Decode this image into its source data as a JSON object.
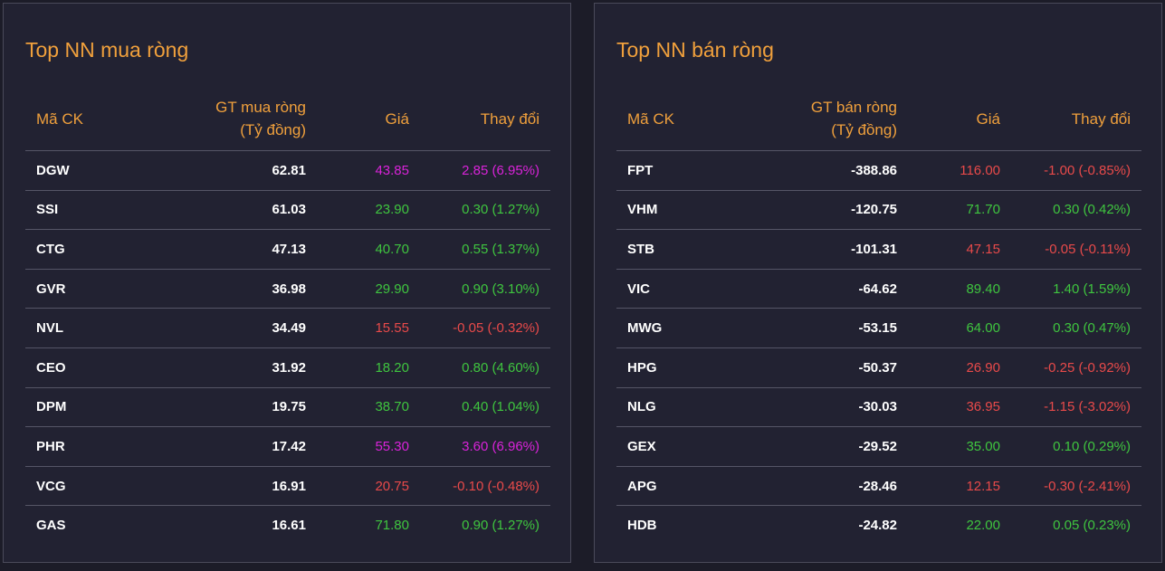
{
  "buy_panel": {
    "title": "Top NN mua ròng",
    "headers": {
      "code": "Mã CK",
      "value_line1": "GT mua ròng",
      "value_line2": "(Tỷ đồng)",
      "price": "Giá",
      "change": "Thay đổi"
    },
    "rows": [
      {
        "code": "DGW",
        "value": "62.81",
        "price": "43.85",
        "change": "2.85 (6.95%)",
        "status": "ceil"
      },
      {
        "code": "SSI",
        "value": "61.03",
        "price": "23.90",
        "change": "0.30 (1.27%)",
        "status": "up"
      },
      {
        "code": "CTG",
        "value": "47.13",
        "price": "40.70",
        "change": "0.55 (1.37%)",
        "status": "up"
      },
      {
        "code": "GVR",
        "value": "36.98",
        "price": "29.90",
        "change": "0.90 (3.10%)",
        "status": "up"
      },
      {
        "code": "NVL",
        "value": "34.49",
        "price": "15.55",
        "change": "-0.05 (-0.32%)",
        "status": "down"
      },
      {
        "code": "CEO",
        "value": "31.92",
        "price": "18.20",
        "change": "0.80 (4.60%)",
        "status": "up"
      },
      {
        "code": "DPM",
        "value": "19.75",
        "price": "38.70",
        "change": "0.40 (1.04%)",
        "status": "up"
      },
      {
        "code": "PHR",
        "value": "17.42",
        "price": "55.30",
        "change": "3.60 (6.96%)",
        "status": "ceil"
      },
      {
        "code": "VCG",
        "value": "16.91",
        "price": "20.75",
        "change": "-0.10 (-0.48%)",
        "status": "down"
      },
      {
        "code": "GAS",
        "value": "16.61",
        "price": "71.80",
        "change": "0.90 (1.27%)",
        "status": "up"
      }
    ]
  },
  "sell_panel": {
    "title": "Top NN bán ròng",
    "headers": {
      "code": "Mã CK",
      "value_line1": "GT bán ròng",
      "value_line2": "(Tỷ đồng)",
      "price": "Giá",
      "change": "Thay đổi"
    },
    "rows": [
      {
        "code": "FPT",
        "value": "-388.86",
        "price": "116.00",
        "change": "-1.00 (-0.85%)",
        "status": "down"
      },
      {
        "code": "VHM",
        "value": "-120.75",
        "price": "71.70",
        "change": "0.30 (0.42%)",
        "status": "up"
      },
      {
        "code": "STB",
        "value": "-101.31",
        "price": "47.15",
        "change": "-0.05 (-0.11%)",
        "status": "down"
      },
      {
        "code": "VIC",
        "value": "-64.62",
        "price": "89.40",
        "change": "1.40 (1.59%)",
        "status": "up"
      },
      {
        "code": "MWG",
        "value": "-53.15",
        "price": "64.00",
        "change": "0.30 (0.47%)",
        "status": "up"
      },
      {
        "code": "HPG",
        "value": "-50.37",
        "price": "26.90",
        "change": "-0.25 (-0.92%)",
        "status": "down"
      },
      {
        "code": "NLG",
        "value": "-30.03",
        "price": "36.95",
        "change": "-1.15 (-3.02%)",
        "status": "down"
      },
      {
        "code": "GEX",
        "value": "-29.52",
        "price": "35.00",
        "change": "0.10 (0.29%)",
        "status": "up"
      },
      {
        "code": "APG",
        "value": "-28.46",
        "price": "12.15",
        "change": "-0.30 (-2.41%)",
        "status": "down"
      },
      {
        "code": "HDB",
        "value": "-24.82",
        "price": "22.00",
        "change": "0.05 (0.23%)",
        "status": "up"
      }
    ]
  },
  "colors": {
    "accent": "#f0a03c",
    "up": "#3fc53f",
    "down": "#e84a4a",
    "ceil": "#d923d9"
  }
}
